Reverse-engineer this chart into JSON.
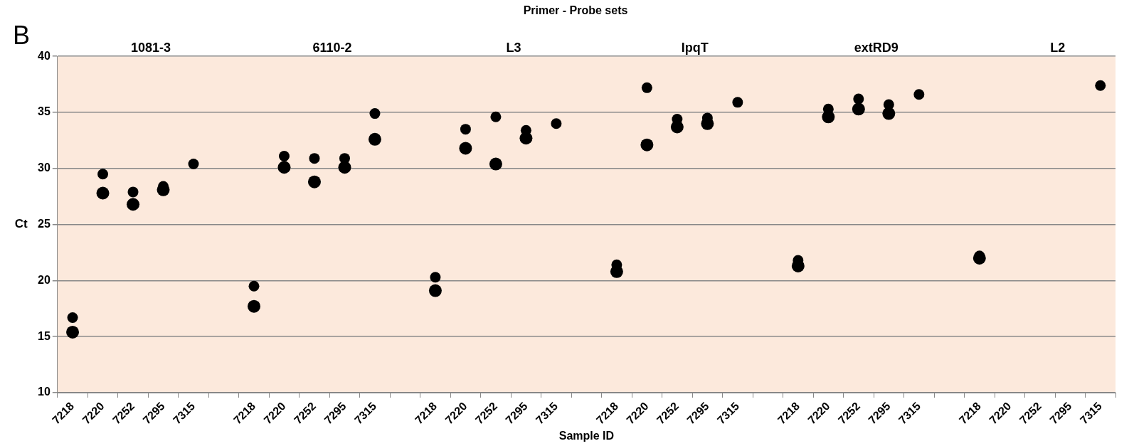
{
  "chart_data": {
    "type": "scatter",
    "title": "Primer - Probe sets",
    "xlabel": "Sample ID",
    "ylabel": "Ct",
    "annotations": [
      "B",
      "1081-3",
      "6110-2",
      "L3",
      "lpqT",
      "extRD9",
      "L2"
    ],
    "categories": [
      "7218",
      "7220",
      "7252",
      "7295",
      "7315",
      null,
      "7218",
      "7220",
      "7252",
      "7295",
      "7315",
      null,
      "7218",
      "7220",
      "7252",
      "7295",
      "7315",
      null,
      "7218",
      "7220",
      "7252",
      "7295",
      "7315",
      null,
      "7218",
      "7220",
      "7252",
      "7295",
      "7315",
      null,
      "7218",
      "7220",
      "7252",
      "7295",
      "7315"
    ],
    "series": [
      {
        "color": "#000000",
        "values": [
          16.7,
          29.5,
          27.9,
          28.4,
          30.4,
          null,
          19.5,
          31.1,
          30.9,
          30.9,
          34.9,
          null,
          20.3,
          33.5,
          34.6,
          33.4,
          34.0,
          null,
          21.4,
          37.2,
          34.4,
          34.5,
          35.9,
          null,
          21.8,
          35.3,
          36.2,
          35.7,
          36.6,
          null,
          22.2,
          null,
          null,
          null,
          37.4
        ]
      },
      {
        "color": "#000000",
        "values": [
          15.4,
          27.8,
          26.8,
          28.1,
          null,
          null,
          17.7,
          30.1,
          28.8,
          30.1,
          32.6,
          null,
          19.1,
          31.8,
          30.4,
          32.7,
          null,
          null,
          20.8,
          32.1,
          33.7,
          34.0,
          null,
          null,
          21.3,
          34.6,
          35.3,
          34.9,
          null,
          null,
          22.0,
          null,
          null,
          null,
          null
        ]
      }
    ],
    "ylim": [
      10,
      40
    ],
    "yticks": [
      10,
      15,
      20,
      25,
      30,
      35,
      40
    ],
    "grid": "y",
    "marker": "circle",
    "line_style": "none"
  }
}
